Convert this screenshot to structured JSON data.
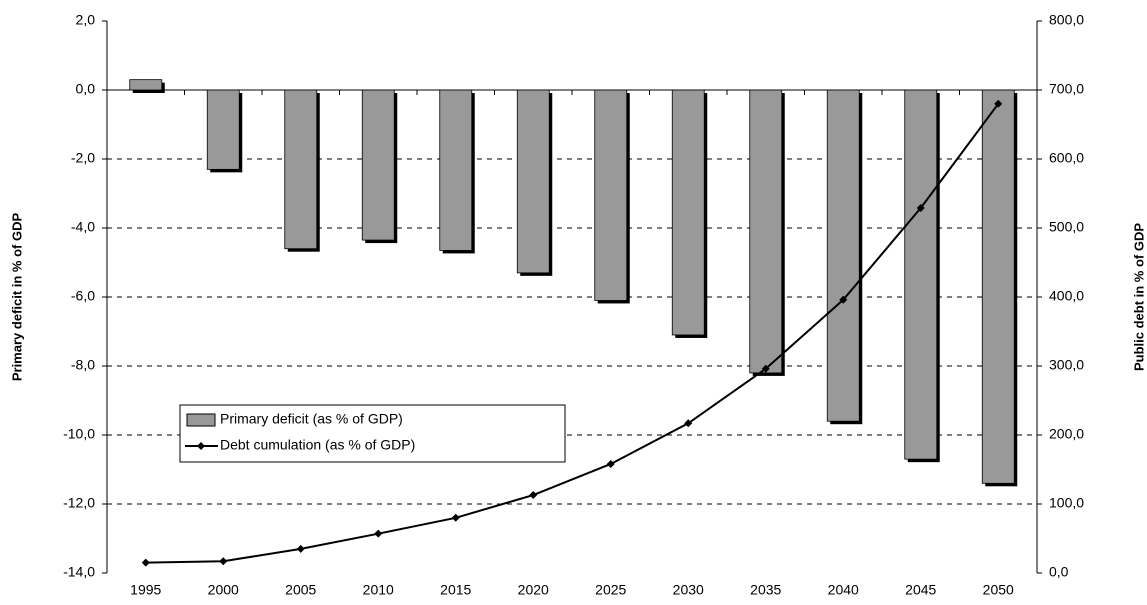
{
  "chart_data": {
    "type": "bar_line",
    "y_label": "Primary deficit in % of GDP",
    "y2_label": "Public debt in % of GDP",
    "categories": [
      "1995",
      "2000",
      "2005",
      "2010",
      "2015",
      "2020",
      "2025",
      "2030",
      "2035",
      "2040",
      "2045",
      "2050"
    ],
    "series": [
      {
        "name": "Primary deficit (as % of GDP)",
        "type": "bar",
        "color": "#999999",
        "values": [
          0.3,
          -2.3,
          -4.6,
          -4.35,
          -4.65,
          -5.3,
          -6.1,
          -7.1,
          -8.2,
          -9.6,
          -10.7,
          -11.4
        ]
      },
      {
        "name": "Debt cumulation (as % of GDP)",
        "type": "line",
        "axis": "y2",
        "color": "#000000",
        "values": [
          15,
          17,
          35,
          57,
          80,
          113,
          158,
          217,
          296,
          396,
          529,
          680
        ]
      }
    ],
    "ylim": [
      -14,
      2
    ],
    "yticks": [
      {
        "value": 2,
        "label": "2,0"
      },
      {
        "value": 0,
        "label": "0,0"
      },
      {
        "value": -2,
        "label": "-2,0"
      },
      {
        "value": -4,
        "label": "-4,0"
      },
      {
        "value": -6,
        "label": "-6,0"
      },
      {
        "value": -8,
        "label": "-8,0"
      },
      {
        "value": -10,
        "label": "-10,0"
      },
      {
        "value": -12,
        "label": "-12,0"
      },
      {
        "value": -14,
        "label": "-14,0"
      }
    ],
    "y2lim": [
      0,
      800
    ],
    "y2ticks": [
      {
        "value": 800,
        "label": "800,0"
      },
      {
        "value": 700,
        "label": "700,0"
      },
      {
        "value": 600,
        "label": "600,0"
      },
      {
        "value": 500,
        "label": "500,0"
      },
      {
        "value": 400,
        "label": "400,0"
      },
      {
        "value": 300,
        "label": "300,0"
      },
      {
        "value": 200,
        "label": "200,0"
      },
      {
        "value": 100,
        "label": "100,0"
      },
      {
        "value": 0,
        "label": "0,0"
      }
    ],
    "grid": true
  }
}
